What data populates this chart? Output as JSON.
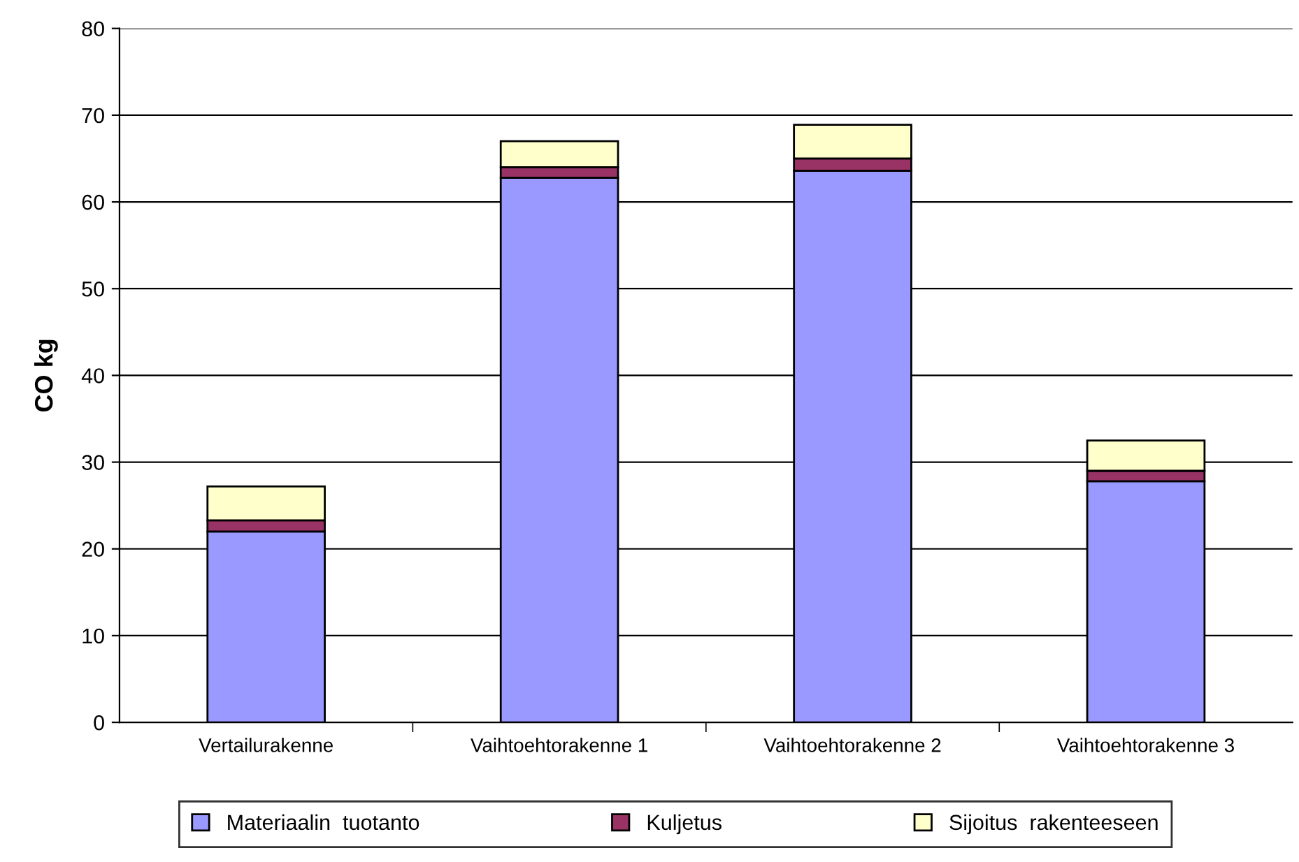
{
  "chart_data": {
    "type": "bar",
    "stacked": true,
    "ylabel": "CO kg",
    "categories": [
      "Vertailurakenne",
      "Vaihtoehtorakenne 1",
      "Vaihtoehtorakenne 2",
      "Vaihtoehtorakenne 3"
    ],
    "series": [
      {
        "name": "Materiaalin  tuotanto",
        "color": "#9999ff",
        "values": [
          22.0,
          62.8,
          63.6,
          27.8
        ]
      },
      {
        "name": "Kuljetus",
        "color": "#993366",
        "values": [
          1.3,
          1.2,
          1.4,
          1.2
        ]
      },
      {
        "name": "Sijoitus  rakenteeseen",
        "color": "#ffffcc",
        "values": [
          3.9,
          3.0,
          3.9,
          3.5
        ]
      }
    ],
    "ylim": [
      0,
      80
    ],
    "yticks": [
      0,
      10,
      20,
      30,
      40,
      50,
      60,
      70,
      80
    ],
    "grid": "y",
    "legend": "bottom"
  }
}
